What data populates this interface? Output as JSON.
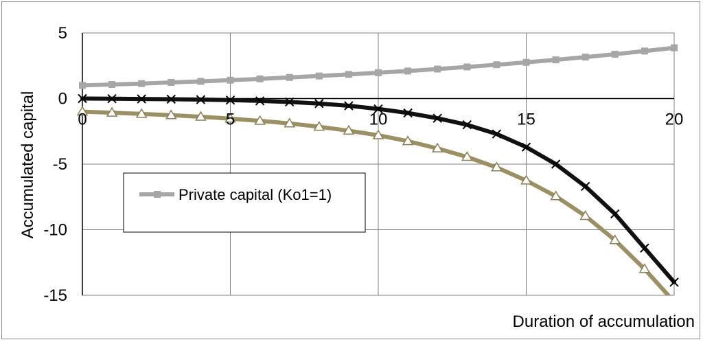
{
  "chart_data": {
    "type": "line",
    "title": "",
    "xlabel": "Duration of accumulation",
    "ylabel": "Accumulated capital",
    "xlim": [
      0,
      20
    ],
    "ylim": [
      -15,
      5
    ],
    "x_ticks": [
      0,
      5,
      10,
      15,
      20
    ],
    "y_ticks": [
      5,
      0,
      -5,
      -10,
      -15
    ],
    "grid": true,
    "legend": {
      "placement": "center-left",
      "entries": [
        "Private capital (Ko1=1)"
      ]
    },
    "x": [
      0,
      1,
      2,
      3,
      4,
      5,
      6,
      7,
      8,
      9,
      10,
      11,
      12,
      13,
      14,
      15,
      16,
      17,
      18,
      19,
      20
    ],
    "series": [
      {
        "name": "Private capital (Ko1=1)",
        "color": "#a6a6a6",
        "marker": "square",
        "values": [
          1.0,
          1.07,
          1.14,
          1.23,
          1.31,
          1.4,
          1.5,
          1.61,
          1.72,
          1.84,
          1.97,
          2.1,
          2.25,
          2.41,
          2.58,
          2.76,
          2.95,
          3.16,
          3.38,
          3.62,
          3.87
        ]
      },
      {
        "color": "#111111",
        "marker": "x",
        "values": [
          0,
          -0.01,
          -0.03,
          -0.05,
          -0.08,
          -0.12,
          -0.18,
          -0.26,
          -0.38,
          -0.55,
          -0.79,
          -1.1,
          -1.5,
          -2.0,
          -2.7,
          -3.7,
          -5.0,
          -6.7,
          -8.8,
          -11.4,
          -14.0
        ]
      },
      {
        "color": "#9b9063",
        "marker": "triangle",
        "values": [
          -1.0,
          -1.08,
          -1.17,
          -1.27,
          -1.39,
          -1.53,
          -1.7,
          -1.9,
          -2.15,
          -2.45,
          -2.8,
          -3.25,
          -3.8,
          -4.45,
          -5.25,
          -6.25,
          -7.45,
          -8.95,
          -10.8,
          -13.0,
          -15.5
        ]
      }
    ]
  }
}
